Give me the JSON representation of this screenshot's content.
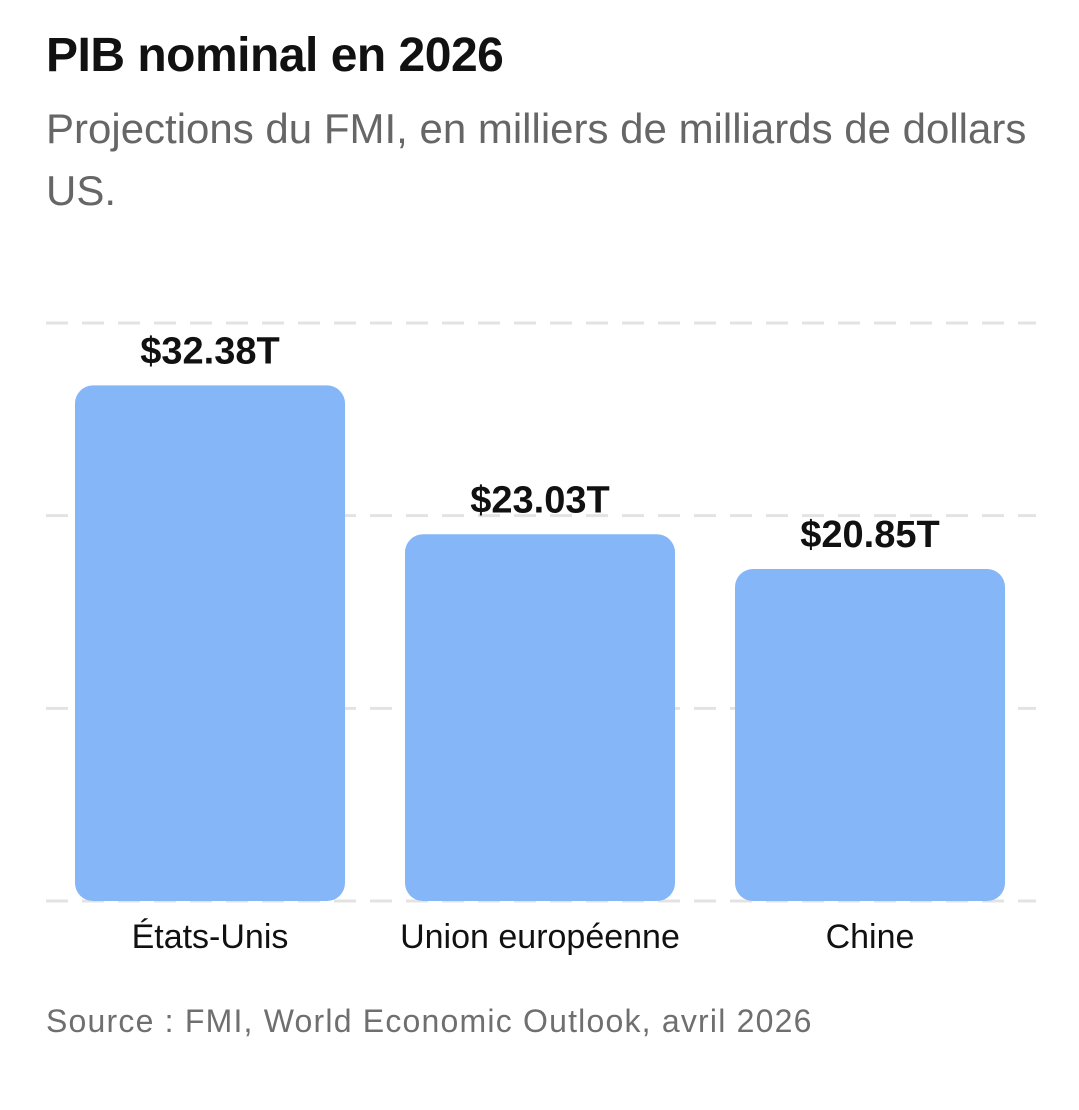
{
  "title": "PIB nominal en 2026",
  "subtitle": "Projections du FMI, en milliers de milliards de dollars US.",
  "source": "Source : FMI, World Economic Outlook, avril 2026",
  "colors": {
    "bar": "#84b6f8",
    "grid": "#e3e3e3",
    "title": "#111111",
    "subtitle": "#666666",
    "source": "#6f6f6f"
  },
  "chart_data": {
    "type": "bar",
    "title": "PIB nominal en 2026",
    "subtitle": "Projections du FMI, en milliers de milliards de dollars US.",
    "categories": [
      "États-Unis",
      "Union européenne",
      "Chine"
    ],
    "values": [
      32.38,
      23.03,
      20.85
    ],
    "value_labels": [
      "$32.38T",
      "$23.03T",
      "$20.85T"
    ],
    "unit": "T$",
    "ylim": [
      0,
      36.3
    ],
    "gridlines": [
      0,
      12.1,
      24.2,
      36.3
    ],
    "grid": true,
    "grid_style": "dashed",
    "legend": "none"
  }
}
